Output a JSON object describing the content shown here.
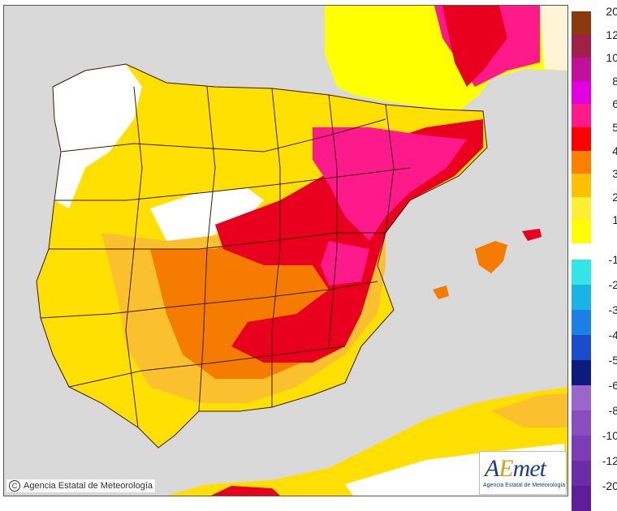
{
  "map": {
    "colors": {
      "sea": "#d9d9d9",
      "white": "#ffffff",
      "c1": "#ffff00",
      "c2": "#ffe000",
      "c3": "#fbc02d",
      "c4": "#f57c00",
      "c5": "#e8001e",
      "c6": "#ff1a8c",
      "c8": "#e000e0",
      "border": "#3a1a00"
    }
  },
  "legend": {
    "items": [
      {
        "label": "20",
        "color": "#8b3a0e"
      },
      {
        "label": "12",
        "color": "#a0204a"
      },
      {
        "label": "10",
        "color": "#c0109a"
      },
      {
        "label": "8",
        "color": "#e000e0"
      },
      {
        "label": "6",
        "color": "#ff1a8c"
      },
      {
        "label": "5",
        "color": "#ff0000"
      },
      {
        "label": "4",
        "color": "#ff8000"
      },
      {
        "label": "3",
        "color": "#ffc000"
      },
      {
        "label": "2",
        "color": "#ffee33"
      },
      {
        "label": "1",
        "color": "#ffff00"
      },
      {
        "label": "-1",
        "color": "#33e6e6"
      },
      {
        "label": "-2",
        "color": "#1ab3e6"
      },
      {
        "label": "-3",
        "color": "#1a80e6"
      },
      {
        "label": "-4",
        "color": "#1a4dcc"
      },
      {
        "label": "-5",
        "color": "#0d1a80"
      },
      {
        "label": "-6",
        "color": "#9966cc"
      },
      {
        "label": "-8",
        "color": "#8a4dbf"
      },
      {
        "label": "-10",
        "color": "#7a3db3"
      },
      {
        "label": "-12",
        "color": "#6b2da6"
      },
      {
        "label": "-20",
        "color": "#5c1f99"
      }
    ]
  },
  "credit": {
    "icon": "copyright-icon",
    "text": "Agencia Estatal de Meteorología"
  },
  "logo": {
    "word_a": "A",
    "word_e": "E",
    "word_rest": "met",
    "subtitle": "Agencia Estatal de Meteorología"
  }
}
